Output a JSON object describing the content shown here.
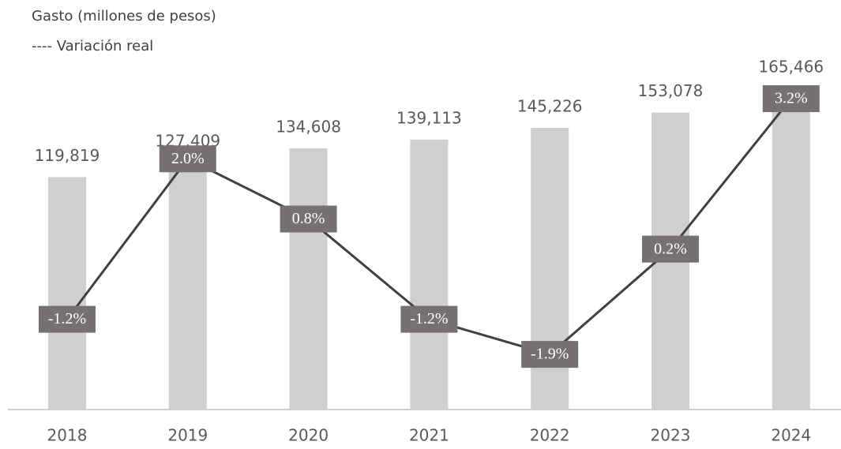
{
  "chart_data": {
    "type": "bar-line",
    "categories": [
      "2018",
      "2019",
      "2020",
      "2021",
      "2022",
      "2023",
      "2024"
    ],
    "series": [
      {
        "name": "Gasto (millones de pesos)",
        "color": "#d0cece",
        "values": [
          119819,
          127409,
          134608,
          139113,
          145226,
          153078,
          165466
        ],
        "value_labels": [
          "119,819",
          "127,409",
          "134,608",
          "139,113",
          "145,226",
          "153,078",
          "165,466"
        ]
      },
      {
        "name": "---- Variación real",
        "color": "#404040",
        "axis": "y2",
        "label_color": "#767171",
        "values": [
          -1.2,
          2.0,
          0.8,
          -1.2,
          -1.9,
          0.2,
          3.2
        ],
        "value_labels": [
          "-1.2%",
          "2.0%",
          "0.8%",
          "-1.2%",
          "-1.9%",
          "0.2%",
          "3.2%"
        ]
      }
    ],
    "ylim": [
      0,
      168000
    ],
    "y2lim": [
      -3,
      3.5
    ]
  }
}
